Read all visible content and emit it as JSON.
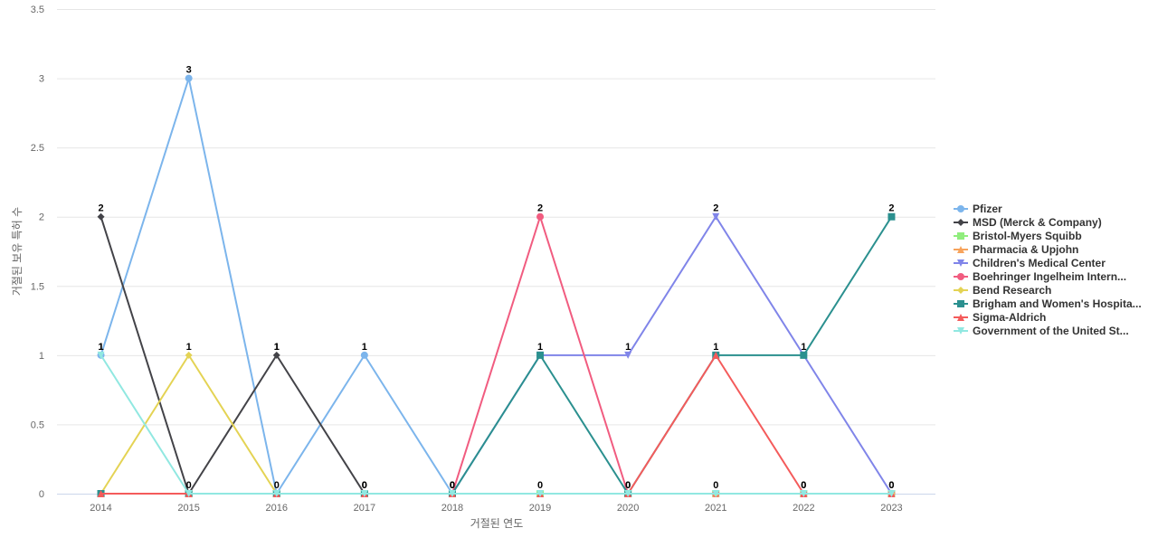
{
  "chart_data": {
    "type": "line",
    "title": "",
    "xlabel": "거절된 연도",
    "ylabel": "거절된 보유 특허 수",
    "x": [
      "2014",
      "2015",
      "2016",
      "2017",
      "2018",
      "2019",
      "2020",
      "2021",
      "2022",
      "2023"
    ],
    "ylim": [
      0,
      3.5
    ],
    "yticks": [
      "0",
      "0.5",
      "1",
      "1.5",
      "2",
      "2.5",
      "3",
      "3.5"
    ],
    "grid": true,
    "legend_position": "right",
    "series": [
      {
        "name": "Pfizer",
        "color": "#7cb5ec",
        "marker": "circle",
        "values": [
          1,
          3,
          0,
          1,
          0,
          0,
          0,
          0,
          0,
          0
        ]
      },
      {
        "name": "MSD (Merck & Company)",
        "color": "#434348",
        "marker": "diamond",
        "values": [
          2,
          0,
          1,
          0,
          0,
          0,
          0,
          0,
          0,
          0
        ]
      },
      {
        "name": "Bristol-Myers Squibb",
        "color": "#90ed7d",
        "marker": "square",
        "values": [
          0,
          0,
          0,
          0,
          0,
          0,
          0,
          0,
          0,
          0
        ]
      },
      {
        "name": "Pharmacia & Upjohn",
        "color": "#f7a35c",
        "marker": "triangle",
        "values": [
          0,
          0,
          0,
          0,
          0,
          0,
          0,
          0,
          0,
          0
        ]
      },
      {
        "name": "Children's Medical Center",
        "color": "#8085e9",
        "marker": "triangle-down",
        "values": [
          0,
          0,
          0,
          0,
          0,
          1,
          1,
          2,
          1,
          0
        ]
      },
      {
        "name": "Boehringer Ingelheim Intern...",
        "color": "#f15c80",
        "marker": "circle",
        "values": [
          0,
          0,
          0,
          0,
          0,
          2,
          0,
          0,
          0,
          0
        ]
      },
      {
        "name": "Bend Research",
        "color": "#e4d354",
        "marker": "diamond",
        "values": [
          0,
          1,
          0,
          0,
          0,
          0,
          0,
          0,
          0,
          0
        ]
      },
      {
        "name": "Brigham and Women's Hospita...",
        "color": "#2b908f",
        "marker": "square",
        "values": [
          0,
          0,
          0,
          0,
          0,
          1,
          0,
          1,
          1,
          2
        ]
      },
      {
        "name": "Sigma-Aldrich",
        "color": "#f45b5b",
        "marker": "triangle",
        "values": [
          0,
          0,
          0,
          0,
          0,
          0,
          0,
          1,
          0,
          0
        ]
      },
      {
        "name": "Government of the United St...",
        "color": "#91e8e1",
        "marker": "triangle-down",
        "values": [
          1,
          0,
          0,
          0,
          0,
          0,
          0,
          0,
          0,
          0
        ]
      }
    ],
    "data_labels": [
      "1",
      "3",
      "1",
      "1",
      "0",
      "2",
      "1",
      "2",
      "1",
      "2",
      "2",
      "0",
      "0",
      "0",
      "0",
      "1",
      "0",
      "1",
      "0",
      "0",
      "1",
      "1",
      "1",
      "0",
      "0",
      "0",
      "0",
      "0",
      "0",
      "0"
    ]
  }
}
